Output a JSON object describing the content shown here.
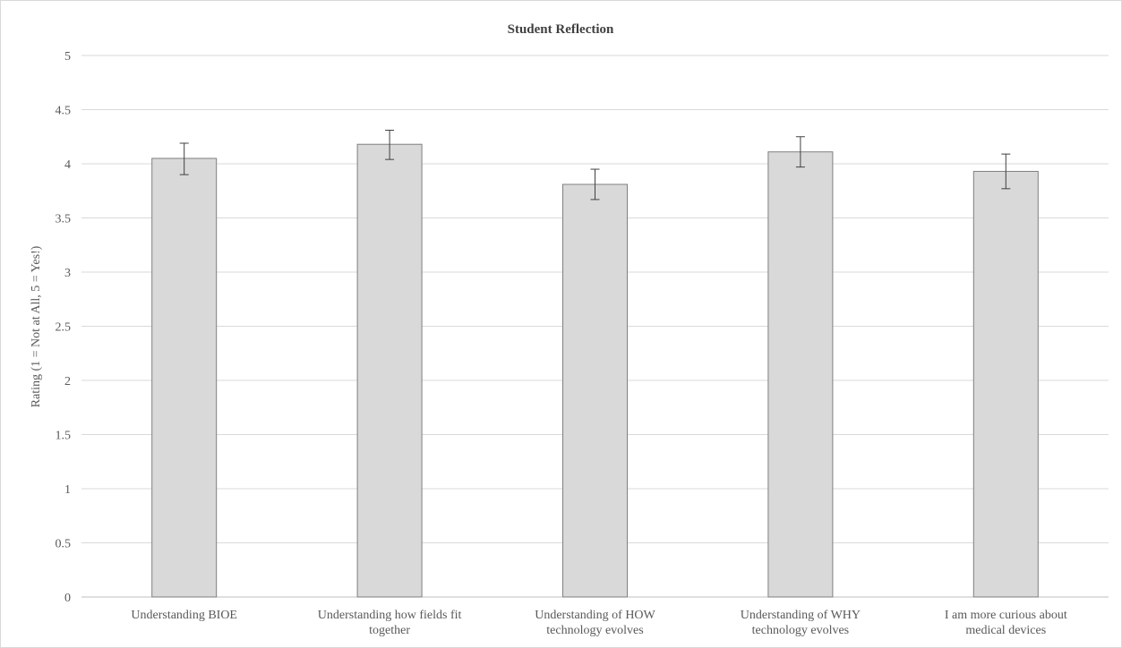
{
  "chart_data": {
    "type": "bar",
    "title": "Student Reflection",
    "xlabel": "",
    "ylabel": "Rating (1 = Not at All, 5 = Yes!)",
    "ylim": [
      0,
      5
    ],
    "yticks": [
      "0",
      "0.5",
      "1",
      "1.5",
      "2",
      "2.5",
      "3",
      "3.5",
      "4",
      "4.5",
      "5"
    ],
    "grid": true,
    "categories": [
      [
        "Understanding BIOE"
      ],
      [
        "Understanding how fields fit",
        "together"
      ],
      [
        "Understanding of HOW",
        "technology evolves"
      ],
      [
        "Understanding of WHY",
        "technology evolves"
      ],
      [
        "I am more curious about",
        "medical devices"
      ]
    ],
    "values": [
      4.05,
      4.18,
      3.81,
      4.11,
      3.93
    ],
    "error_low": [
      3.9,
      4.04,
      3.67,
      3.97,
      3.77
    ],
    "error_high": [
      4.19,
      4.31,
      3.95,
      4.25,
      4.09
    ],
    "colors": {
      "bar_fill": "#d9d9d9",
      "bar_stroke": "#7f7f7f",
      "grid": "#d9d9d9",
      "error_bar": "#404040",
      "axis": "#bfbfbf"
    }
  }
}
